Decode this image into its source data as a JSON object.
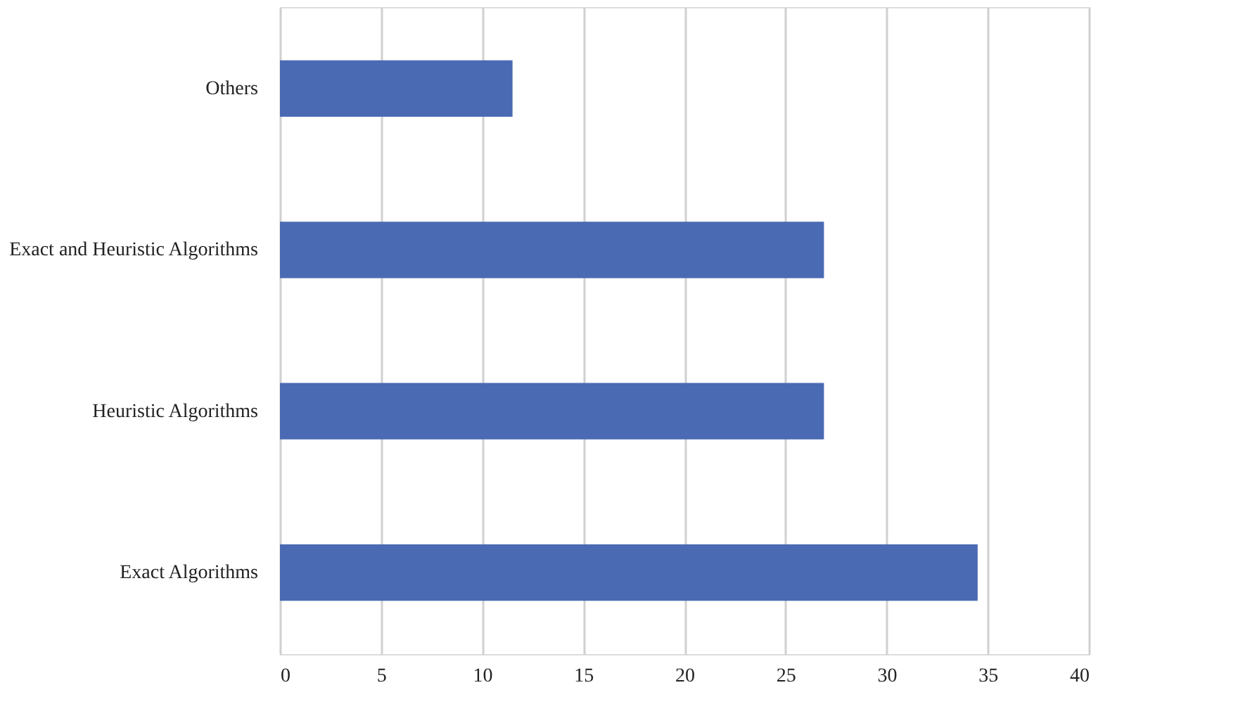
{
  "chart_data": {
    "type": "bar",
    "orientation": "horizontal",
    "categories": [
      "Others",
      "Exact and Heuristic Algorithms",
      "Heuristic Algorithms",
      "Exact Algorithms"
    ],
    "values": [
      11.5,
      26.9,
      26.9,
      34.5
    ],
    "color": "#4a6ab3",
    "xlim": [
      0,
      40
    ],
    "xticks": [
      0,
      5,
      10,
      15,
      20,
      25,
      30,
      35,
      40
    ],
    "grid": "x"
  }
}
